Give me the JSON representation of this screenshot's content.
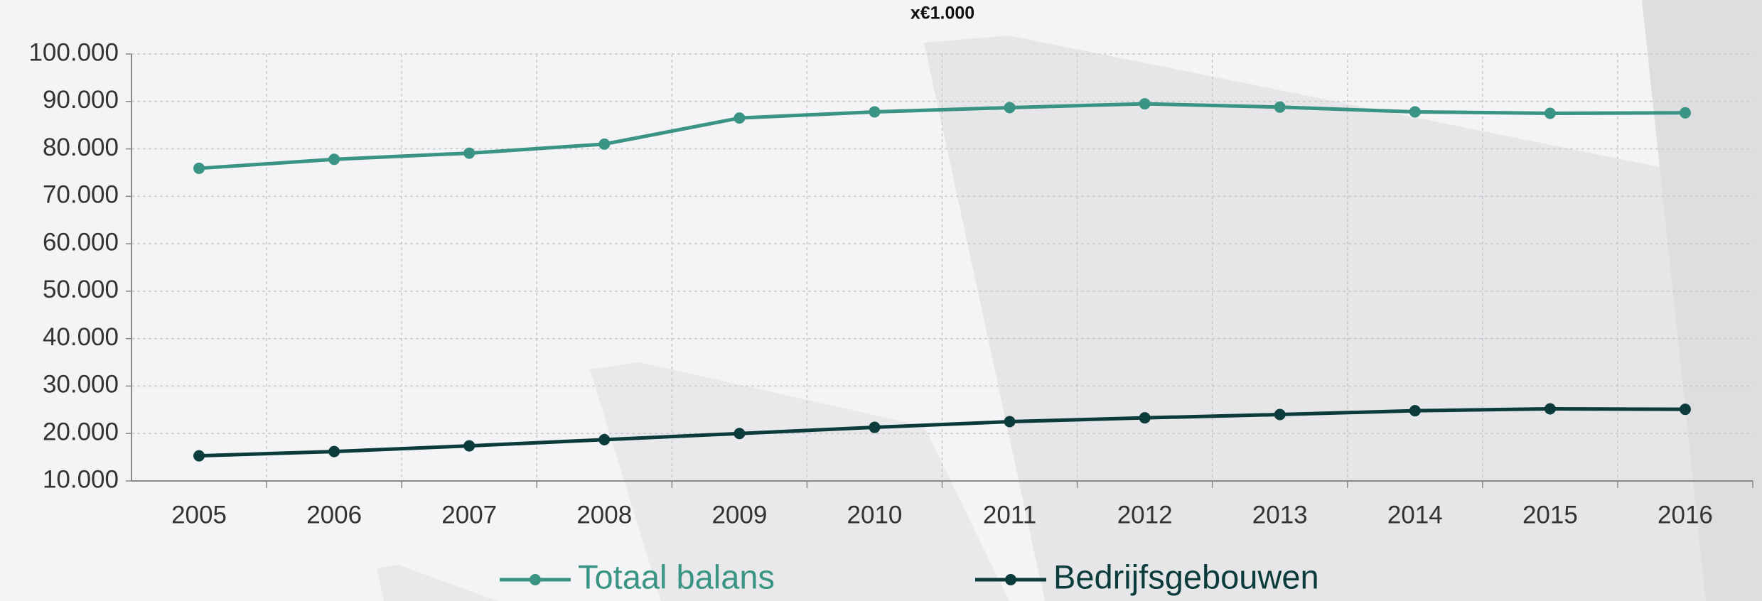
{
  "chart_data": {
    "type": "line",
    "title": "x€1.000",
    "categories": [
      "2005",
      "2006",
      "2007",
      "2008",
      "2009",
      "2010",
      "2011",
      "2012",
      "2013",
      "2014",
      "2015",
      "2016"
    ],
    "series": [
      {
        "name": "Totaal balans",
        "color": "#3a9483",
        "values": [
          75900,
          77800,
          79100,
          81000,
          86500,
          87800,
          88700,
          89500,
          88800,
          87800,
          87500,
          87600
        ]
      },
      {
        "name": "Bedrijfsgebouwen",
        "color": "#0b3b3b",
        "values": [
          15300,
          16200,
          17400,
          18700,
          20000,
          21300,
          22500,
          23300,
          24000,
          24800,
          25200,
          25100
        ]
      }
    ],
    "ylim": [
      10000,
      100000
    ],
    "yticks": [
      {
        "value": 10000,
        "label": "10.000"
      },
      {
        "value": 20000,
        "label": "20.000"
      },
      {
        "value": 30000,
        "label": "30.000"
      },
      {
        "value": 40000,
        "label": "40.000"
      },
      {
        "value": 50000,
        "label": "50.000"
      },
      {
        "value": 60000,
        "label": "60.000"
      },
      {
        "value": 70000,
        "label": "70.000"
      },
      {
        "value": 80000,
        "label": "80.000"
      },
      {
        "value": 90000,
        "label": "90.000"
      },
      {
        "value": 100000,
        "label": "100.000"
      }
    ],
    "grid": true,
    "legend": "bottom"
  }
}
